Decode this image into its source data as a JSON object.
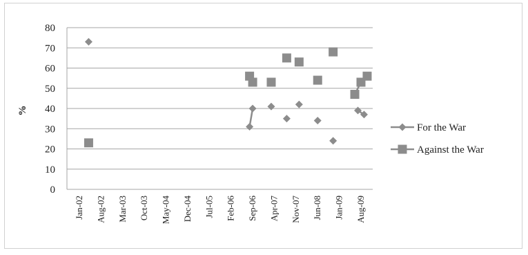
{
  "chart_data": {
    "type": "scatter",
    "title": "",
    "xlabel": "",
    "ylabel": "%",
    "ylim": [
      0,
      80
    ],
    "y_ticks": [
      0,
      10,
      20,
      30,
      40,
      50,
      60,
      70,
      80
    ],
    "x_ticks": [
      "Jan-02",
      "Aug-02",
      "Mar-03",
      "Oct-03",
      "May-04",
      "Dec-04",
      "Jul-05",
      "Feb-06",
      "Sep-06",
      "Apr-07",
      "Nov-07",
      "Jun-08",
      "Jan-09",
      "Aug-09"
    ],
    "grid": "horizontal",
    "legend_position": "right",
    "series": [
      {
        "name": "For the War",
        "color": "#8c8c8c",
        "marker": "diamond",
        "points": [
          {
            "x": "2002-04",
            "y": 73
          },
          {
            "x": "2006-08",
            "y": 31
          },
          {
            "x": "2006-09",
            "y": 40
          },
          {
            "x": "2007-03",
            "y": 41
          },
          {
            "x": "2007-08",
            "y": 35
          },
          {
            "x": "2007-12",
            "y": 42
          },
          {
            "x": "2008-06",
            "y": 34
          },
          {
            "x": "2008-11",
            "y": 24
          },
          {
            "x": "2009-07",
            "y": 39
          },
          {
            "x": "2009-09",
            "y": 37
          }
        ]
      },
      {
        "name": "Against the War",
        "color": "#8c8c8c",
        "marker": "square",
        "points": [
          {
            "x": "2002-04",
            "y": 23
          },
          {
            "x": "2006-08",
            "y": 56
          },
          {
            "x": "2006-09",
            "y": 53
          },
          {
            "x": "2007-03",
            "y": 53
          },
          {
            "x": "2007-08",
            "y": 65
          },
          {
            "x": "2007-12",
            "y": 63
          },
          {
            "x": "2008-06",
            "y": 54
          },
          {
            "x": "2008-11",
            "y": 68
          },
          {
            "x": "2009-06",
            "y": 47
          },
          {
            "x": "2009-08",
            "y": 53
          },
          {
            "x": "2009-10",
            "y": 56
          }
        ]
      }
    ]
  }
}
